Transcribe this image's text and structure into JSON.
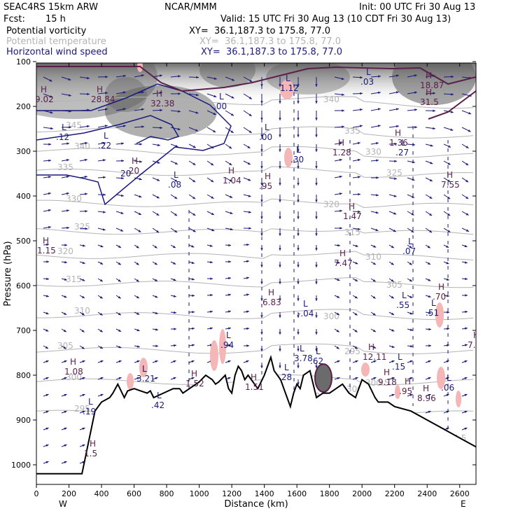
{
  "header": {
    "model": "SEAC4RS 15km ARW",
    "org": "NCAR/MMM",
    "init": "Init: 00 UTC Fri 30 Aug 13",
    "fcst_label": "Fcst:",
    "fcst_value": "15 h",
    "valid": "Valid: 15 UTC Fri 30 Aug 13 (10 CDT Fri 30 Aug 13)"
  },
  "fields": [
    {
      "name": "Potential vorticity",
      "xy": "XY=  36.1,187.3 to 175.8, 77.0",
      "color": "#000000"
    },
    {
      "name": "Potential temperature",
      "xy": "XY=  36.1,187.3 to 175.8, 77.0",
      "color": "#b4b4b4"
    },
    {
      "name": "Horizontal wind speed",
      "xy": "XY=  36.1,187.3 to 175.8, 77.0",
      "color": "#1a1a7a"
    }
  ],
  "chart_data": {
    "type": "cross-section",
    "xlabel": "Distance (km)",
    "ylabel": "Pressure (hPa)",
    "x_ticks": [
      "0",
      "200",
      "400",
      "600",
      "800",
      "1000",
      "1200",
      "1400",
      "1600",
      "1800",
      "2000",
      "2200",
      "2400",
      "2600"
    ],
    "y_ticks": [
      "100",
      "200",
      "300",
      "400",
      "500",
      "600",
      "700",
      "800",
      "900",
      "1000"
    ],
    "xlim": [
      0,
      2700
    ],
    "ylim": [
      1050,
      100
    ],
    "west_label": "W",
    "east_label": "E",
    "terrain": [
      [
        0,
        1020
      ],
      [
        130,
        1020
      ],
      [
        280,
        1020
      ],
      [
        320,
        950
      ],
      [
        360,
        880
      ],
      [
        400,
        860
      ],
      [
        450,
        850
      ],
      [
        470,
        840
      ],
      [
        500,
        820
      ],
      [
        540,
        850
      ],
      [
        560,
        835
      ],
      [
        600,
        830
      ],
      [
        640,
        835
      ],
      [
        680,
        840
      ],
      [
        700,
        835
      ],
      [
        720,
        850
      ],
      [
        780,
        840
      ],
      [
        840,
        830
      ],
      [
        880,
        830
      ],
      [
        900,
        840
      ],
      [
        940,
        830
      ],
      [
        980,
        820
      ],
      [
        1000,
        815
      ],
      [
        1040,
        800
      ],
      [
        1080,
        810
      ],
      [
        1100,
        820
      ],
      [
        1120,
        815
      ],
      [
        1160,
        800
      ],
      [
        1180,
        830
      ],
      [
        1200,
        840
      ],
      [
        1220,
        800
      ],
      [
        1240,
        780
      ],
      [
        1260,
        790
      ],
      [
        1280,
        810
      ],
      [
        1300,
        800
      ],
      [
        1340,
        820
      ],
      [
        1360,
        830
      ],
      [
        1400,
        800
      ],
      [
        1440,
        760
      ],
      [
        1460,
        790
      ],
      [
        1500,
        810
      ],
      [
        1520,
        830
      ],
      [
        1560,
        870
      ],
      [
        1580,
        840
      ],
      [
        1600,
        820
      ],
      [
        1620,
        830
      ],
      [
        1640,
        800
      ],
      [
        1680,
        790
      ],
      [
        1700,
        820
      ],
      [
        1720,
        850
      ],
      [
        1760,
        840
      ],
      [
        1800,
        840
      ],
      [
        1840,
        830
      ],
      [
        1880,
        820
      ],
      [
        1920,
        840
      ],
      [
        1960,
        850
      ],
      [
        2000,
        810
      ],
      [
        2040,
        820
      ],
      [
        2080,
        850
      ],
      [
        2100,
        860
      ],
      [
        2160,
        860
      ],
      [
        2200,
        870
      ],
      [
        2300,
        880
      ],
      [
        2400,
        900
      ],
      [
        2500,
        920
      ],
      [
        2600,
        940
      ],
      [
        2700,
        960
      ]
    ],
    "theta_labels": [
      "355",
      "345",
      "340",
      "335",
      "330",
      "325",
      "320",
      "315",
      "310",
      "305",
      "300",
      "295",
      "340",
      "335",
      "330",
      "325",
      "320",
      "315",
      "310",
      "305",
      "300",
      "295",
      "300.5",
      "310",
      "305.5"
    ],
    "theta_values": [
      355,
      345,
      340,
      335,
      330,
      325,
      320,
      315,
      310,
      305,
      300,
      295
    ],
    "pv_extrema": [
      {
        "t": "H",
        "v": "9.02"
      },
      {
        "t": "H",
        "v": "28.84"
      },
      {
        "t": "H",
        "v": "32.38"
      },
      {
        "t": "L",
        "v": ".00"
      },
      {
        "t": "L",
        "v": ".12"
      },
      {
        "t": "L",
        "v": ".22"
      },
      {
        "t": "H",
        "v": ".20"
      },
      {
        "t": "L",
        "v": ".08"
      },
      {
        "t": "H",
        "v": "1.04"
      },
      {
        "t": "H",
        "v": ".95"
      },
      {
        "t": "L",
        "v": ".00"
      },
      {
        "t": "L",
        "v": ".30"
      },
      {
        "t": "H",
        "v": "1.28"
      },
      {
        "t": "L",
        "v": "1.12"
      },
      {
        "t": "L",
        "v": ".03"
      },
      {
        "t": "H",
        "v": "18.87"
      },
      {
        "t": "H",
        "v": "31.5"
      },
      {
        "t": "H",
        "v": "1.36"
      },
      {
        "t": "L",
        "v": ".27"
      },
      {
        "t": "H",
        "v": "7.55"
      },
      {
        "t": "L",
        "v": "1.03"
      },
      {
        "t": "H",
        "v": "1.47"
      },
      {
        "t": "H",
        "v": "1.15"
      },
      {
        "t": "H",
        "v": "7.47"
      },
      {
        "t": "L",
        "v": ".07"
      },
      {
        "t": "H",
        "v": "6.83"
      },
      {
        "t": "L",
        "v": "-.04"
      },
      {
        "t": "L",
        "v": ".55"
      },
      {
        "t": "H",
        "v": ".70"
      },
      {
        "t": "L",
        "v": ".51"
      },
      {
        "t": "H",
        "v": "7.5"
      },
      {
        "t": "L",
        "v": ".94"
      },
      {
        "t": "H",
        "v": "1.08"
      },
      {
        "t": "L",
        "v": "3.21"
      },
      {
        "t": "H",
        "v": "1.52"
      },
      {
        "t": "H",
        "v": "1.51"
      },
      {
        "t": "L",
        "v": ".28"
      },
      {
        "t": "L",
        "v": ".62"
      },
      {
        "t": "L",
        "v": "3.78"
      },
      {
        "t": "H",
        "v": "12.11"
      },
      {
        "t": "L",
        "v": ".15"
      },
      {
        "t": "H",
        "v": "9.18"
      },
      {
        "t": "H",
        "v": ".95"
      },
      {
        "t": "H",
        "v": "8.96"
      },
      {
        "t": "L",
        "v": ".06"
      },
      {
        "t": "L",
        "v": ".19"
      },
      {
        "t": "L",
        "v": ".42"
      },
      {
        "t": "H",
        "v": "1.5"
      }
    ],
    "wind_speed_contours": [
      20
    ],
    "grid": false,
    "colors": {
      "pv_fill": "#f4b6b6",
      "pv_contour": "#5a1f4a",
      "theta": "#b4b4b4",
      "wind": "#1a1a7a",
      "terrain": "#000000",
      "strat_fill": "#808080"
    }
  }
}
